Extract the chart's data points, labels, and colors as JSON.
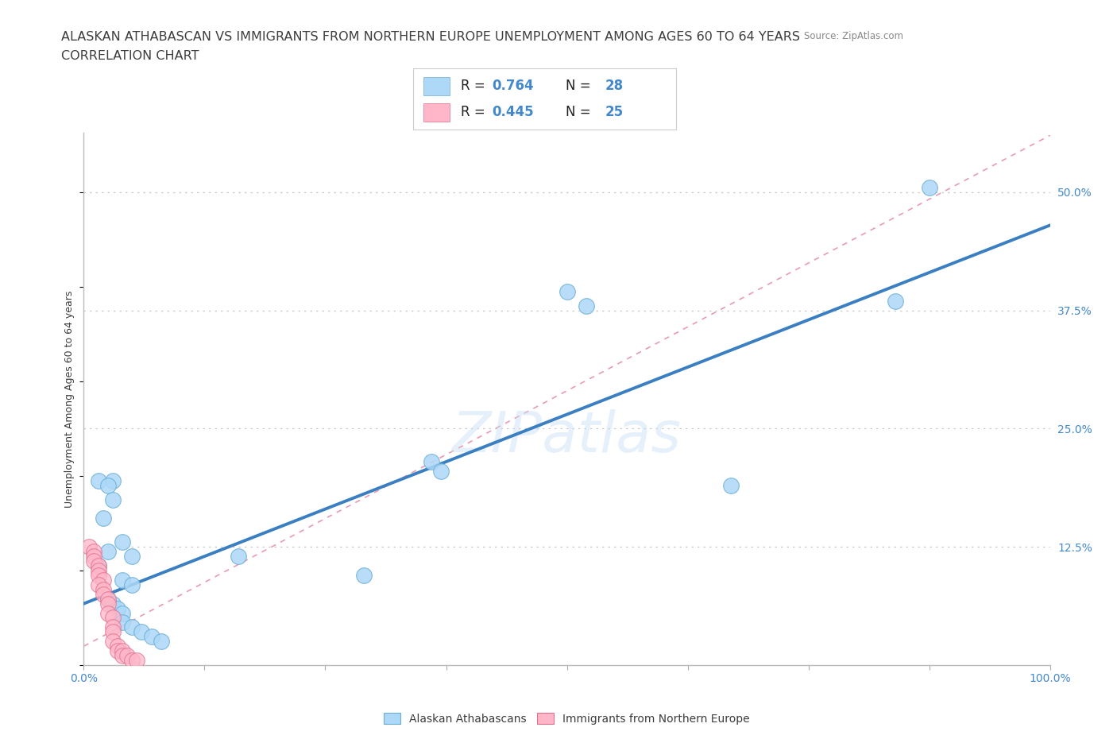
{
  "title_line1": "ALASKAN ATHABASCAN VS IMMIGRANTS FROM NORTHERN EUROPE UNEMPLOYMENT AMONG AGES 60 TO 64 YEARS",
  "title_line2": "CORRELATION CHART",
  "source_text": "Source: ZipAtlas.com",
  "ylabel": "Unemployment Among Ages 60 to 64 years",
  "xlim": [
    0,
    1.0
  ],
  "ylim": [
    0,
    0.5625
  ],
  "xticks": [
    0.0,
    0.125,
    0.25,
    0.375,
    0.5,
    0.625,
    0.75,
    0.875,
    1.0
  ],
  "xticklabels": [
    "0.0%",
    "",
    "",
    "",
    "",
    "",
    "",
    "",
    "100.0%"
  ],
  "ytick_positions": [
    0.0,
    0.125,
    0.25,
    0.375,
    0.5
  ],
  "yticklabels_right": [
    "",
    "12.5%",
    "25.0%",
    "37.5%",
    "50.0%"
  ],
  "watermark": "ZIPatlas",
  "blue_scatter": [
    [
      0.015,
      0.195
    ],
    [
      0.03,
      0.195
    ],
    [
      0.02,
      0.155
    ],
    [
      0.025,
      0.12
    ],
    [
      0.015,
      0.105
    ],
    [
      0.025,
      0.19
    ],
    [
      0.03,
      0.175
    ],
    [
      0.04,
      0.13
    ],
    [
      0.05,
      0.115
    ],
    [
      0.04,
      0.09
    ],
    [
      0.05,
      0.085
    ],
    [
      0.025,
      0.07
    ],
    [
      0.03,
      0.065
    ],
    [
      0.035,
      0.06
    ],
    [
      0.04,
      0.055
    ],
    [
      0.04,
      0.045
    ],
    [
      0.05,
      0.04
    ],
    [
      0.06,
      0.035
    ],
    [
      0.07,
      0.03
    ],
    [
      0.08,
      0.025
    ],
    [
      0.16,
      0.115
    ],
    [
      0.29,
      0.095
    ],
    [
      0.36,
      0.215
    ],
    [
      0.37,
      0.205
    ],
    [
      0.5,
      0.395
    ],
    [
      0.52,
      0.38
    ],
    [
      0.67,
      0.19
    ],
    [
      0.84,
      0.385
    ],
    [
      0.875,
      0.505
    ]
  ],
  "pink_scatter": [
    [
      0.005,
      0.125
    ],
    [
      0.01,
      0.12
    ],
    [
      0.01,
      0.115
    ],
    [
      0.01,
      0.11
    ],
    [
      0.015,
      0.105
    ],
    [
      0.015,
      0.1
    ],
    [
      0.015,
      0.095
    ],
    [
      0.02,
      0.09
    ],
    [
      0.015,
      0.085
    ],
    [
      0.02,
      0.08
    ],
    [
      0.02,
      0.075
    ],
    [
      0.025,
      0.07
    ],
    [
      0.025,
      0.065
    ],
    [
      0.025,
      0.055
    ],
    [
      0.03,
      0.05
    ],
    [
      0.03,
      0.04
    ],
    [
      0.03,
      0.035
    ],
    [
      0.03,
      0.025
    ],
    [
      0.035,
      0.02
    ],
    [
      0.035,
      0.015
    ],
    [
      0.04,
      0.015
    ],
    [
      0.04,
      0.01
    ],
    [
      0.045,
      0.01
    ],
    [
      0.05,
      0.005
    ],
    [
      0.055,
      0.005
    ]
  ],
  "blue_line_x": [
    0.0,
    1.0
  ],
  "blue_line_y": [
    0.065,
    0.465
  ],
  "pink_line_x": [
    0.0,
    1.0
  ],
  "pink_line_y": [
    0.02,
    0.56
  ],
  "scatter_size": 200,
  "blue_scatter_color": "#add8f7",
  "blue_scatter_edge": "#6baed6",
  "pink_scatter_color": "#ffb6c8",
  "pink_scatter_edge": "#e07090",
  "blue_line_color": "#3a7fc1",
  "pink_line_color": "#e07090",
  "grid_color": "#c8c8c8",
  "bg_color": "#ffffff",
  "title_color": "#3d3d3d",
  "tick_color": "#4488cc",
  "title_fontsize": 11.5,
  "subtitle_fontsize": 11.5,
  "axis_fontsize": 10,
  "ylabel_fontsize": 9,
  "legend_color1": "#add8f7",
  "legend_color2": "#ffb6c8"
}
